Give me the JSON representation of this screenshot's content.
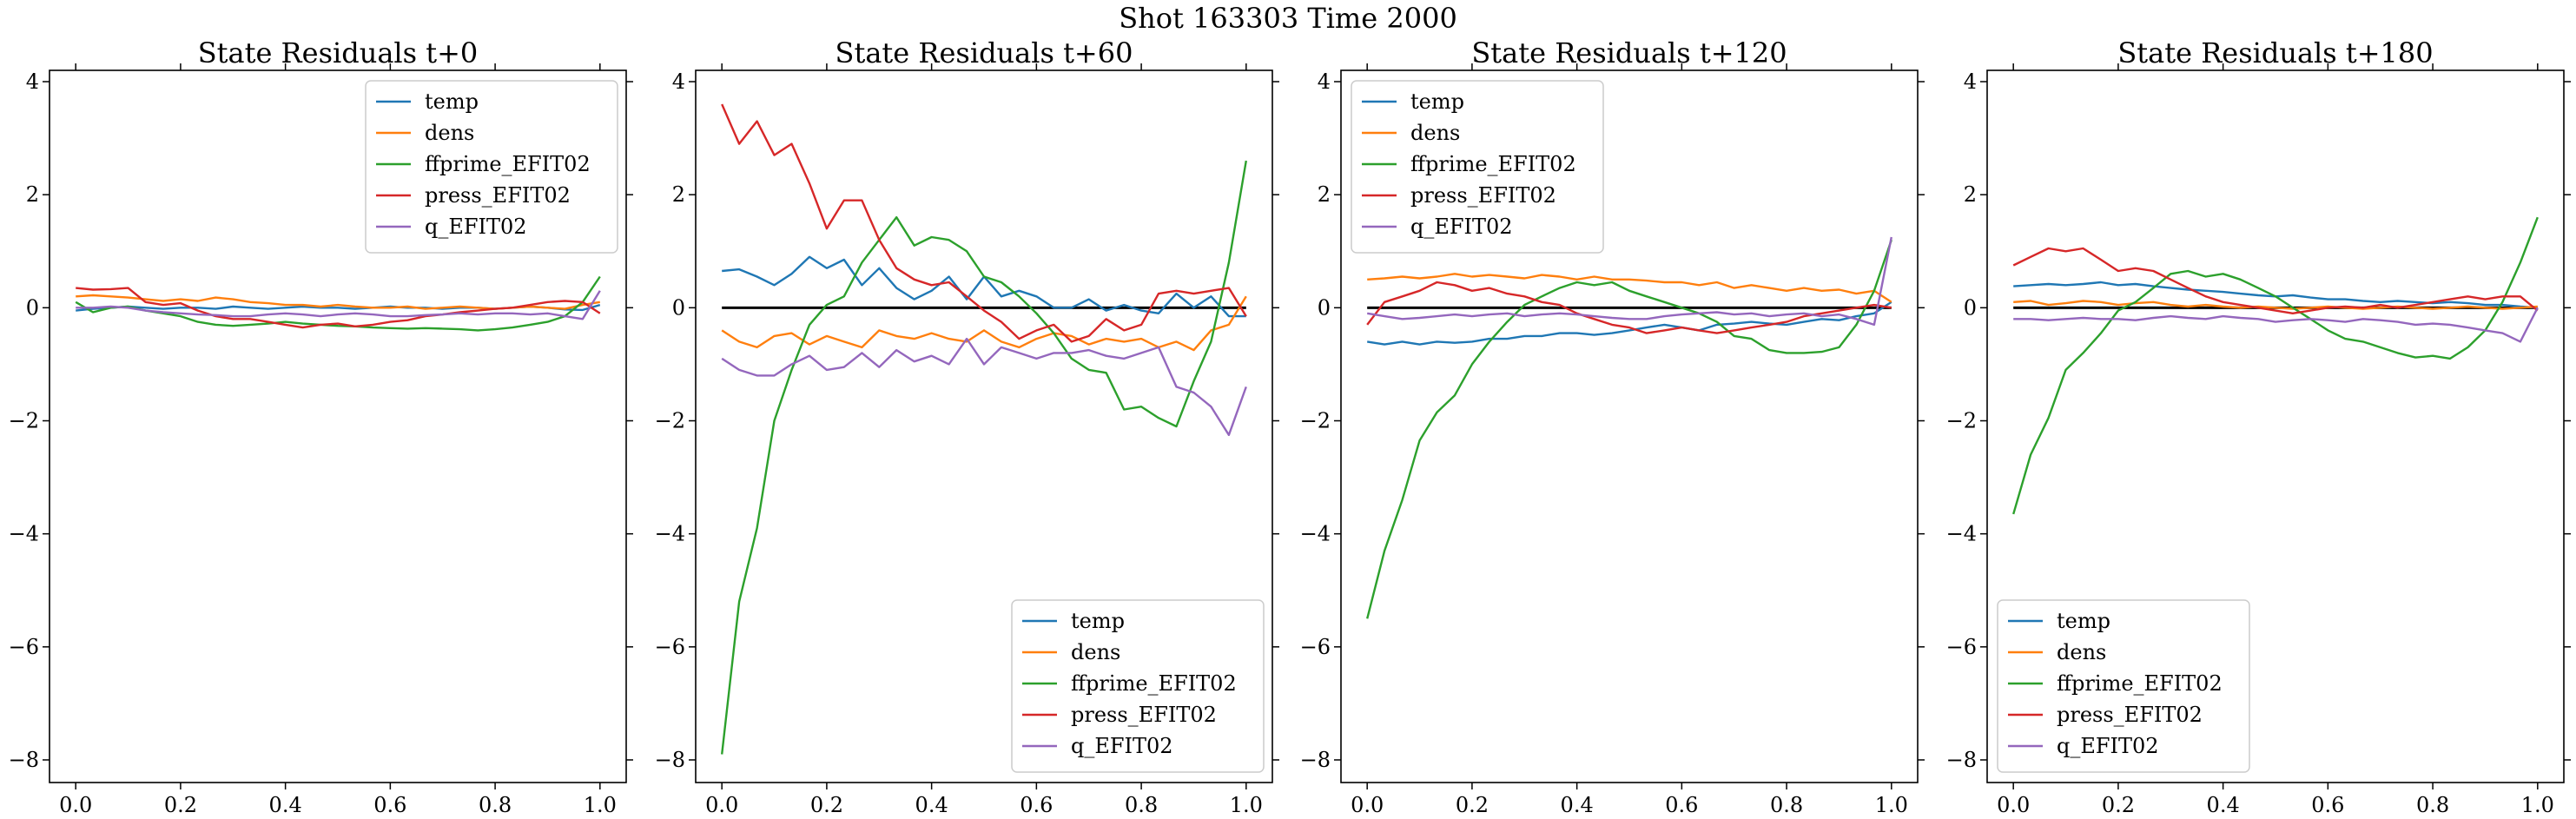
{
  "suptitle": "Shot 163303   Time 2000",
  "colors": {
    "temp": "#1f77b4",
    "dens": "#ff7f0e",
    "ffprime_EFIT02": "#2ca02c",
    "press_EFIT02": "#d62728",
    "q_EFIT02": "#9467bd",
    "zero_line": "#000000"
  },
  "chart_data": [
    {
      "type": "line",
      "title": "State Residuals t+0",
      "xlabel": "",
      "ylabel": "",
      "xlim": [
        -0.05,
        1.05
      ],
      "ylim": [
        -8.4,
        4.2
      ],
      "xticks": [
        "0.0",
        "0.2",
        "0.4",
        "0.6",
        "0.8",
        "1.0"
      ],
      "yticks": [
        "4",
        "2",
        "0",
        "−2",
        "−4",
        "−6",
        "−8"
      ],
      "legend_position": "upper right",
      "zero_line": false,
      "x": [
        0.0,
        0.033,
        0.067,
        0.1,
        0.133,
        0.167,
        0.2,
        0.233,
        0.267,
        0.3,
        0.333,
        0.367,
        0.4,
        0.433,
        0.467,
        0.5,
        0.533,
        0.567,
        0.6,
        0.633,
        0.667,
        0.7,
        0.733,
        0.767,
        0.8,
        0.833,
        0.867,
        0.9,
        0.933,
        0.967,
        1.0
      ],
      "series": [
        {
          "name": "temp",
          "values": [
            -0.05,
            -0.02,
            0.0,
            0.02,
            0.0,
            -0.02,
            0.0,
            0.0,
            -0.02,
            0.02,
            0.0,
            -0.02,
            0.0,
            0.02,
            0.0,
            0.0,
            -0.02,
            0.0,
            0.02,
            0.0,
            0.0,
            -0.02,
            0.0,
            0.0,
            -0.02,
            0.0,
            0.02,
            0.0,
            -0.03,
            -0.04,
            0.05
          ]
        },
        {
          "name": "dens",
          "values": [
            0.2,
            0.22,
            0.2,
            0.18,
            0.15,
            0.12,
            0.15,
            0.12,
            0.18,
            0.15,
            0.1,
            0.08,
            0.05,
            0.05,
            0.02,
            0.05,
            0.02,
            0.0,
            0.0,
            0.02,
            -0.02,
            0.0,
            0.02,
            0.0,
            -0.02,
            0.0,
            0.02,
            0.0,
            -0.02,
            0.05,
            0.1
          ]
        },
        {
          "name": "ffprime_EFIT02",
          "values": [
            0.1,
            -0.08,
            0.0,
            0.02,
            -0.05,
            -0.1,
            -0.15,
            -0.25,
            -0.3,
            -0.32,
            -0.3,
            -0.28,
            -0.25,
            -0.28,
            -0.3,
            -0.32,
            -0.33,
            -0.35,
            -0.36,
            -0.37,
            -0.36,
            -0.37,
            -0.38,
            -0.4,
            -0.38,
            -0.35,
            -0.3,
            -0.25,
            -0.15,
            0.1,
            0.55
          ]
        },
        {
          "name": "press_EFIT02",
          "values": [
            0.35,
            0.32,
            0.33,
            0.35,
            0.1,
            0.05,
            0.08,
            -0.05,
            -0.15,
            -0.2,
            -0.2,
            -0.25,
            -0.3,
            -0.35,
            -0.3,
            -0.28,
            -0.33,
            -0.3,
            -0.25,
            -0.22,
            -0.15,
            -0.12,
            -0.08,
            -0.05,
            -0.02,
            0.0,
            0.05,
            0.1,
            0.12,
            0.1,
            -0.1
          ]
        },
        {
          "name": "q_EFIT02",
          "values": [
            0.0,
            0.0,
            0.02,
            0.0,
            -0.05,
            -0.08,
            -0.1,
            -0.12,
            -0.13,
            -0.15,
            -0.15,
            -0.12,
            -0.1,
            -0.12,
            -0.15,
            -0.12,
            -0.1,
            -0.12,
            -0.15,
            -0.15,
            -0.13,
            -0.12,
            -0.1,
            -0.12,
            -0.1,
            -0.1,
            -0.12,
            -0.1,
            -0.15,
            -0.2,
            0.3
          ]
        }
      ]
    },
    {
      "type": "line",
      "title": "State Residuals t+60",
      "xlabel": "",
      "ylabel": "",
      "xlim": [
        -0.05,
        1.05
      ],
      "ylim": [
        -8.4,
        4.2
      ],
      "xticks": [
        "0.0",
        "0.2",
        "0.4",
        "0.6",
        "0.8",
        "1.0"
      ],
      "yticks": [
        "4",
        "2",
        "0",
        "−2",
        "−4",
        "−6",
        "−8"
      ],
      "legend_position": "lower right",
      "zero_line": true,
      "x": [
        0.0,
        0.033,
        0.067,
        0.1,
        0.133,
        0.167,
        0.2,
        0.233,
        0.267,
        0.3,
        0.333,
        0.367,
        0.4,
        0.433,
        0.467,
        0.5,
        0.533,
        0.567,
        0.6,
        0.633,
        0.667,
        0.7,
        0.733,
        0.767,
        0.8,
        0.833,
        0.867,
        0.9,
        0.933,
        0.967,
        1.0
      ],
      "series": [
        {
          "name": "temp",
          "values": [
            0.65,
            0.68,
            0.55,
            0.4,
            0.6,
            0.9,
            0.7,
            0.85,
            0.4,
            0.7,
            0.35,
            0.15,
            0.3,
            0.55,
            0.15,
            0.55,
            0.2,
            0.3,
            0.2,
            0.0,
            0.0,
            0.15,
            -0.05,
            0.05,
            -0.05,
            -0.1,
            0.25,
            0.0,
            0.2,
            -0.15,
            -0.15
          ]
        },
        {
          "name": "dens",
          "values": [
            -0.4,
            -0.6,
            -0.7,
            -0.5,
            -0.45,
            -0.65,
            -0.5,
            -0.6,
            -0.7,
            -0.4,
            -0.5,
            -0.55,
            -0.45,
            -0.55,
            -0.6,
            -0.4,
            -0.6,
            -0.7,
            -0.55,
            -0.45,
            -0.5,
            -0.65,
            -0.55,
            -0.6,
            -0.55,
            -0.7,
            -0.6,
            -0.75,
            -0.4,
            -0.3,
            0.2
          ]
        },
        {
          "name": "ffprime_EFIT02",
          "values": [
            -7.9,
            -5.2,
            -3.9,
            -2.0,
            -1.1,
            -0.3,
            0.05,
            0.2,
            0.8,
            1.2,
            1.6,
            1.1,
            1.25,
            1.2,
            1.0,
            0.55,
            0.45,
            0.2,
            -0.1,
            -0.45,
            -0.9,
            -1.1,
            -1.15,
            -1.8,
            -1.75,
            -1.95,
            -2.1,
            -1.3,
            -0.6,
            0.8,
            2.6
          ]
        },
        {
          "name": "press_EFIT02",
          "values": [
            3.6,
            2.9,
            3.3,
            2.7,
            2.9,
            2.2,
            1.4,
            1.9,
            1.9,
            1.2,
            0.7,
            0.5,
            0.4,
            0.45,
            0.2,
            -0.05,
            -0.25,
            -0.55,
            -0.4,
            -0.3,
            -0.6,
            -0.5,
            -0.2,
            -0.4,
            -0.3,
            0.25,
            0.3,
            0.25,
            0.3,
            0.35,
            -0.15
          ]
        },
        {
          "name": "q_EFIT02",
          "values": [
            -0.9,
            -1.1,
            -1.2,
            -1.2,
            -1.0,
            -0.85,
            -1.1,
            -1.05,
            -0.8,
            -1.05,
            -0.75,
            -0.95,
            -0.85,
            -1.0,
            -0.55,
            -1.0,
            -0.7,
            -0.8,
            -0.9,
            -0.8,
            -0.8,
            -0.75,
            -0.85,
            -0.9,
            -0.8,
            -0.7,
            -1.4,
            -1.5,
            -1.75,
            -2.25,
            -1.4
          ]
        }
      ]
    },
    {
      "type": "line",
      "title": "State Residuals t+120",
      "xlabel": "",
      "ylabel": "",
      "xlim": [
        -0.05,
        1.05
      ],
      "ylim": [
        -8.4,
        4.2
      ],
      "xticks": [
        "0.0",
        "0.2",
        "0.4",
        "0.6",
        "0.8",
        "1.0"
      ],
      "yticks": [
        "4",
        "2",
        "0",
        "−2",
        "−4",
        "−6",
        "−8"
      ],
      "legend_position": "upper left",
      "zero_line": true,
      "x": [
        0.0,
        0.033,
        0.067,
        0.1,
        0.133,
        0.167,
        0.2,
        0.233,
        0.267,
        0.3,
        0.333,
        0.367,
        0.4,
        0.433,
        0.467,
        0.5,
        0.533,
        0.567,
        0.6,
        0.633,
        0.667,
        0.7,
        0.733,
        0.767,
        0.8,
        0.833,
        0.867,
        0.9,
        0.933,
        0.967,
        1.0
      ],
      "series": [
        {
          "name": "temp",
          "values": [
            -0.6,
            -0.65,
            -0.6,
            -0.65,
            -0.6,
            -0.62,
            -0.6,
            -0.55,
            -0.55,
            -0.5,
            -0.5,
            -0.45,
            -0.45,
            -0.48,
            -0.45,
            -0.4,
            -0.35,
            -0.3,
            -0.35,
            -0.4,
            -0.3,
            -0.28,
            -0.25,
            -0.28,
            -0.3,
            -0.25,
            -0.2,
            -0.22,
            -0.15,
            -0.1,
            0.1
          ]
        },
        {
          "name": "dens",
          "values": [
            0.5,
            0.52,
            0.55,
            0.52,
            0.55,
            0.6,
            0.55,
            0.58,
            0.55,
            0.52,
            0.58,
            0.55,
            0.5,
            0.55,
            0.5,
            0.5,
            0.48,
            0.45,
            0.45,
            0.4,
            0.45,
            0.35,
            0.4,
            0.35,
            0.3,
            0.35,
            0.3,
            0.32,
            0.25,
            0.3,
            0.1
          ]
        },
        {
          "name": "ffprime_EFIT02",
          "values": [
            -5.5,
            -4.3,
            -3.4,
            -2.35,
            -1.85,
            -1.55,
            -1.0,
            -0.6,
            -0.25,
            0.05,
            0.2,
            0.35,
            0.45,
            0.4,
            0.45,
            0.3,
            0.2,
            0.1,
            0.0,
            -0.1,
            -0.25,
            -0.5,
            -0.55,
            -0.75,
            -0.8,
            -0.8,
            -0.78,
            -0.7,
            -0.3,
            0.3,
            1.2
          ]
        },
        {
          "name": "press_EFIT02",
          "values": [
            -0.3,
            0.1,
            0.2,
            0.3,
            0.45,
            0.4,
            0.3,
            0.35,
            0.25,
            0.2,
            0.1,
            0.05,
            -0.1,
            -0.2,
            -0.3,
            -0.35,
            -0.45,
            -0.4,
            -0.35,
            -0.4,
            -0.45,
            -0.4,
            -0.35,
            -0.3,
            -0.25,
            -0.15,
            -0.1,
            -0.05,
            0.0,
            0.05,
            0.0
          ]
        },
        {
          "name": "q_EFIT02",
          "values": [
            -0.1,
            -0.15,
            -0.2,
            -0.18,
            -0.15,
            -0.12,
            -0.15,
            -0.12,
            -0.1,
            -0.15,
            -0.12,
            -0.1,
            -0.12,
            -0.15,
            -0.18,
            -0.2,
            -0.2,
            -0.15,
            -0.12,
            -0.1,
            -0.08,
            -0.12,
            -0.1,
            -0.15,
            -0.12,
            -0.1,
            -0.15,
            -0.12,
            -0.2,
            -0.3,
            1.25
          ]
        }
      ]
    },
    {
      "type": "line",
      "title": "State Residuals t+180",
      "xlabel": "",
      "ylabel": "",
      "xlim": [
        -0.05,
        1.05
      ],
      "ylim": [
        -8.4,
        4.2
      ],
      "xticks": [
        "0.0",
        "0.2",
        "0.4",
        "0.6",
        "0.8",
        "1.0"
      ],
      "yticks": [
        "4",
        "2",
        "0",
        "−2",
        "−4",
        "−6",
        "−8"
      ],
      "legend_position": "lower left",
      "zero_line": true,
      "x": [
        0.0,
        0.033,
        0.067,
        0.1,
        0.133,
        0.167,
        0.2,
        0.233,
        0.267,
        0.3,
        0.333,
        0.367,
        0.4,
        0.433,
        0.467,
        0.5,
        0.533,
        0.567,
        0.6,
        0.633,
        0.667,
        0.7,
        0.733,
        0.767,
        0.8,
        0.833,
        0.867,
        0.9,
        0.933,
        0.967,
        1.0
      ],
      "series": [
        {
          "name": "temp",
          "values": [
            0.38,
            0.4,
            0.42,
            0.4,
            0.42,
            0.45,
            0.4,
            0.42,
            0.38,
            0.35,
            0.32,
            0.3,
            0.28,
            0.25,
            0.22,
            0.2,
            0.22,
            0.18,
            0.15,
            0.15,
            0.12,
            0.1,
            0.12,
            0.1,
            0.08,
            0.1,
            0.08,
            0.05,
            0.05,
            0.02,
            0.0
          ]
        },
        {
          "name": "dens",
          "values": [
            0.1,
            0.12,
            0.05,
            0.08,
            0.12,
            0.1,
            0.05,
            0.08,
            0.1,
            0.05,
            0.02,
            0.05,
            0.02,
            0.0,
            0.02,
            0.0,
            -0.02,
            0.0,
            0.02,
            0.0,
            -0.02,
            0.0,
            0.02,
            0.0,
            -0.02,
            0.0,
            0.02,
            0.0,
            -0.02,
            0.0,
            0.02
          ]
        },
        {
          "name": "ffprime_EFIT02",
          "values": [
            -3.65,
            -2.6,
            -1.95,
            -1.1,
            -0.8,
            -0.45,
            -0.05,
            0.1,
            0.35,
            0.6,
            0.65,
            0.55,
            0.6,
            0.5,
            0.35,
            0.2,
            0.0,
            -0.2,
            -0.4,
            -0.55,
            -0.6,
            -0.7,
            -0.8,
            -0.88,
            -0.85,
            -0.9,
            -0.7,
            -0.4,
            0.1,
            0.8,
            1.6
          ]
        },
        {
          "name": "press_EFIT02",
          "values": [
            0.75,
            0.9,
            1.05,
            1.0,
            1.05,
            0.85,
            0.65,
            0.7,
            0.65,
            0.5,
            0.35,
            0.2,
            0.1,
            0.05,
            0.0,
            -0.05,
            -0.1,
            -0.05,
            0.0,
            0.02,
            0.0,
            0.05,
            0.0,
            0.05,
            0.1,
            0.15,
            0.2,
            0.15,
            0.2,
            0.2,
            -0.05
          ]
        },
        {
          "name": "q_EFIT02",
          "values": [
            -0.2,
            -0.2,
            -0.22,
            -0.2,
            -0.18,
            -0.2,
            -0.2,
            -0.22,
            -0.18,
            -0.15,
            -0.18,
            -0.2,
            -0.15,
            -0.18,
            -0.2,
            -0.25,
            -0.22,
            -0.2,
            -0.22,
            -0.25,
            -0.2,
            -0.22,
            -0.25,
            -0.3,
            -0.28,
            -0.3,
            -0.35,
            -0.4,
            -0.45,
            -0.6,
            0.0
          ]
        }
      ]
    }
  ]
}
